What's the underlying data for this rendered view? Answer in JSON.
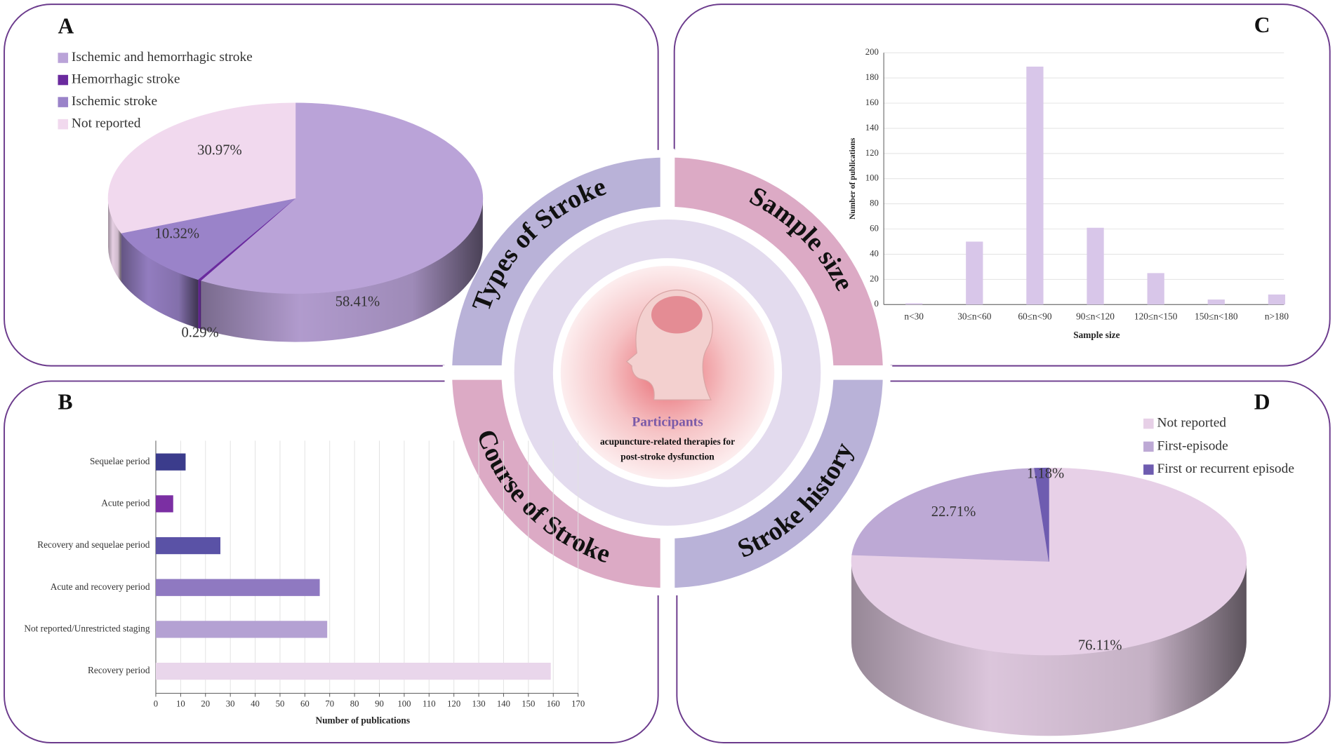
{
  "chart_data": [
    {
      "type": "pie",
      "panel": "A",
      "categories": [
        "Ischemic and hemorrhagic stroke",
        "Hemorrhagic stroke",
        "Ischemic stroke",
        "Not reported"
      ],
      "values": [
        58.41,
        0.29,
        10.32,
        30.97
      ],
      "value_labels": [
        "58.41%",
        "0.29%",
        "10.32%",
        "30.97%"
      ],
      "colors": [
        "#baa3d8",
        "#6a2a9e",
        "#9a83c9",
        "#f1d9ee"
      ]
    },
    {
      "type": "hbar",
      "panel": "B",
      "categories": [
        "Sequelae period",
        "Acute period",
        "Recovery and sequelae period",
        "Acute and recovery period",
        "Not reported/Unrestricted staging",
        "Recovery period"
      ],
      "values": [
        12,
        7,
        26,
        66,
        69,
        159
      ],
      "colors": [
        "#3b3c8c",
        "#7b2fa3",
        "#5a52a6",
        "#8f79c1",
        "#b4a1d3",
        "#e9d6eb"
      ],
      "xlabel": "Number of publications",
      "xlim": [
        0,
        170
      ],
      "xticks": [
        0,
        10,
        20,
        30,
        40,
        50,
        60,
        70,
        80,
        90,
        100,
        110,
        120,
        130,
        140,
        150,
        160,
        170
      ],
      "grid": true
    },
    {
      "type": "bar",
      "panel": "C",
      "categories": [
        "n<30",
        "30≤n<60",
        "60≤n<90",
        "90≤n<120",
        "120≤n<150",
        "150≤n<180",
        "n>180"
      ],
      "values": [
        1,
        50,
        189,
        61,
        25,
        4,
        8
      ],
      "color": "#d8c6e9",
      "xlabel": "Sample size",
      "ylabel": "Number of publications",
      "ylim": [
        0,
        200
      ],
      "yticks": [
        0,
        20,
        40,
        60,
        80,
        100,
        120,
        140,
        160,
        180,
        200
      ],
      "grid": true
    },
    {
      "type": "pie",
      "panel": "D",
      "categories": [
        "Not reported",
        "First-episode",
        "First or recurrent episode"
      ],
      "values": [
        76.11,
        22.71,
        1.18
      ],
      "value_labels": [
        "76.11%",
        "22.71%",
        "1.18%"
      ],
      "colors": [
        "#e7d0e7",
        "#bda9d5",
        "#6e5cb0"
      ]
    }
  ],
  "diagram": {
    "segments": [
      "Types of Stroke",
      "Sample size",
      "Course of Stroke",
      "Stroke history"
    ],
    "title": "Participants",
    "subtitle_lines": [
      "acupuncture-related therapies for",
      "post-stroke dysfunction"
    ]
  }
}
